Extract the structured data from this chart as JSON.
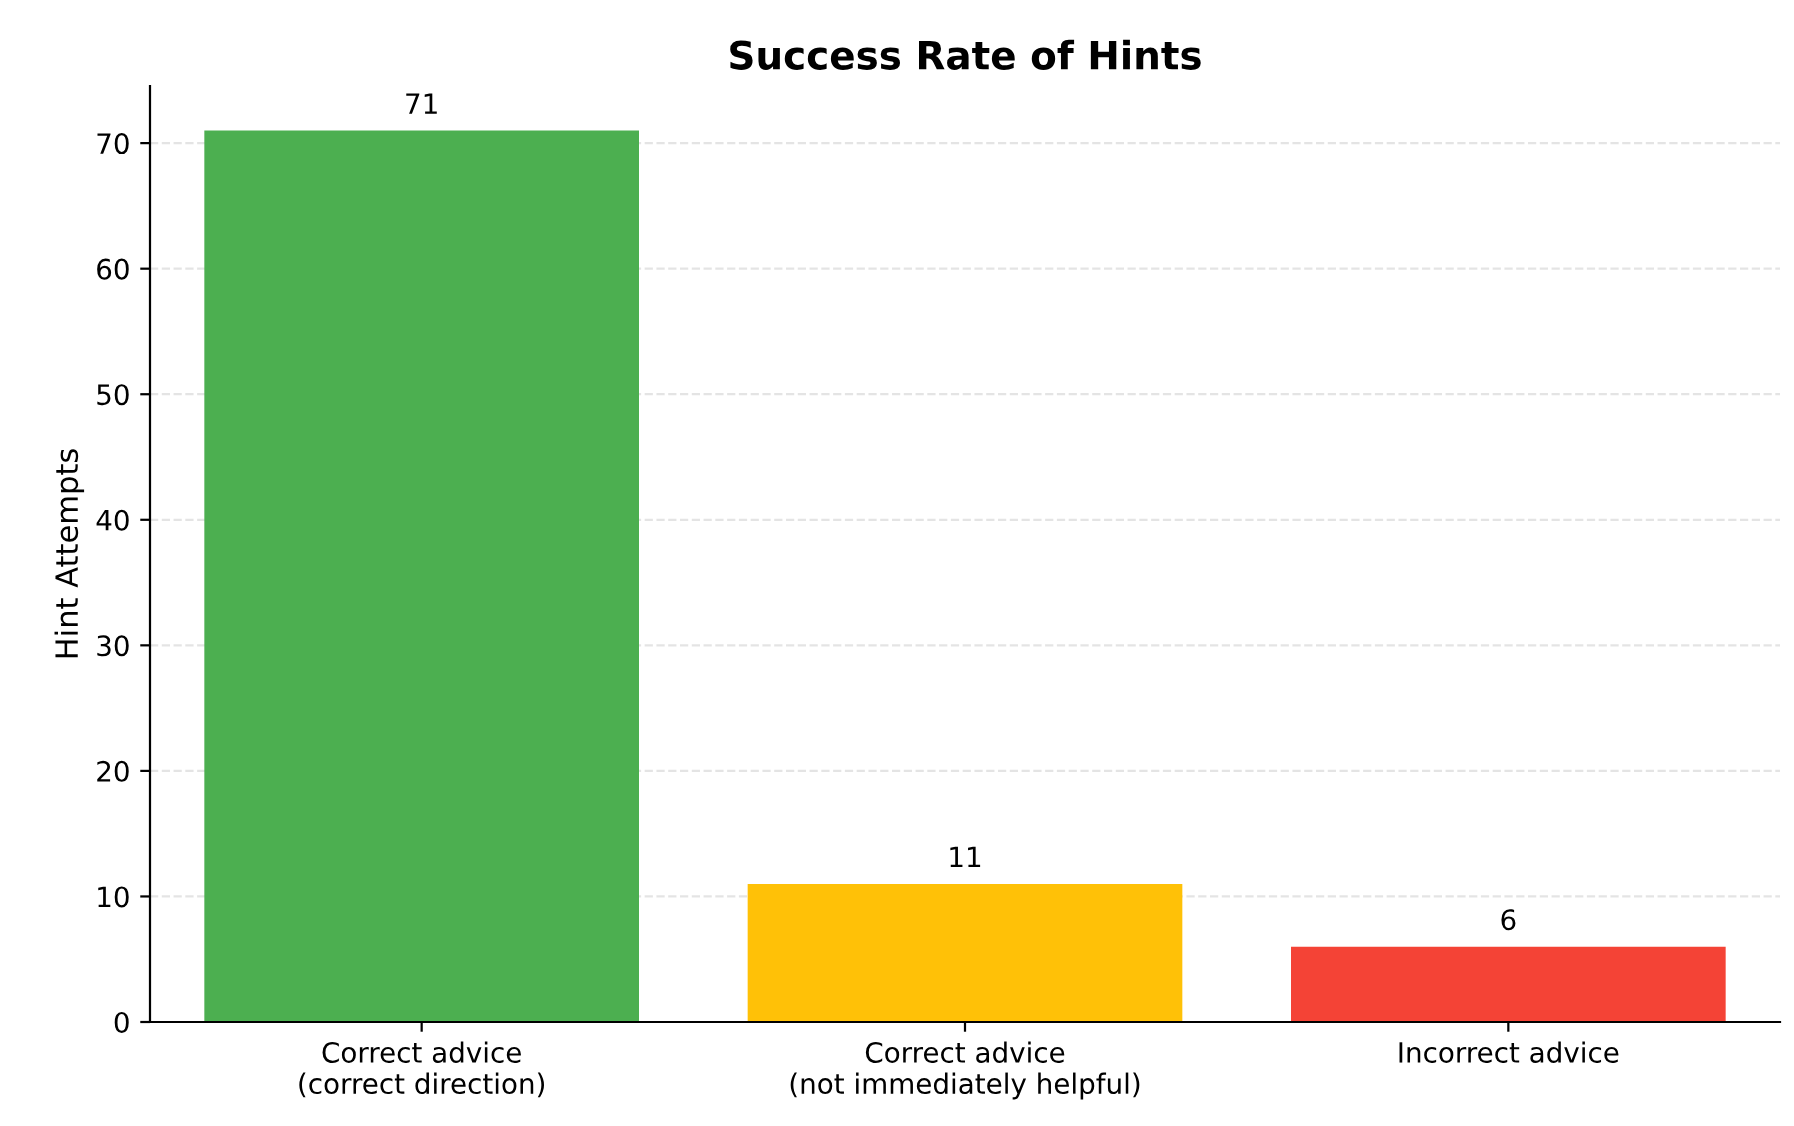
{
  "chart_data": {
    "type": "bar",
    "title": "Success Rate of Hints",
    "ylabel": "Hint Attempts",
    "categories": [
      "Correct advice\n(correct direction)",
      "Correct advice\n(not immediately helpful)",
      "Incorrect advice"
    ],
    "values": [
      71,
      11,
      6
    ],
    "colors": [
      "#4caf50",
      "#ffc107",
      "#f44336"
    ],
    "ylim": [
      0,
      74.55
    ],
    "yticks": [
      0,
      10,
      20,
      30,
      40,
      50,
      60,
      70
    ],
    "grid": "y",
    "data_labels": true
  }
}
